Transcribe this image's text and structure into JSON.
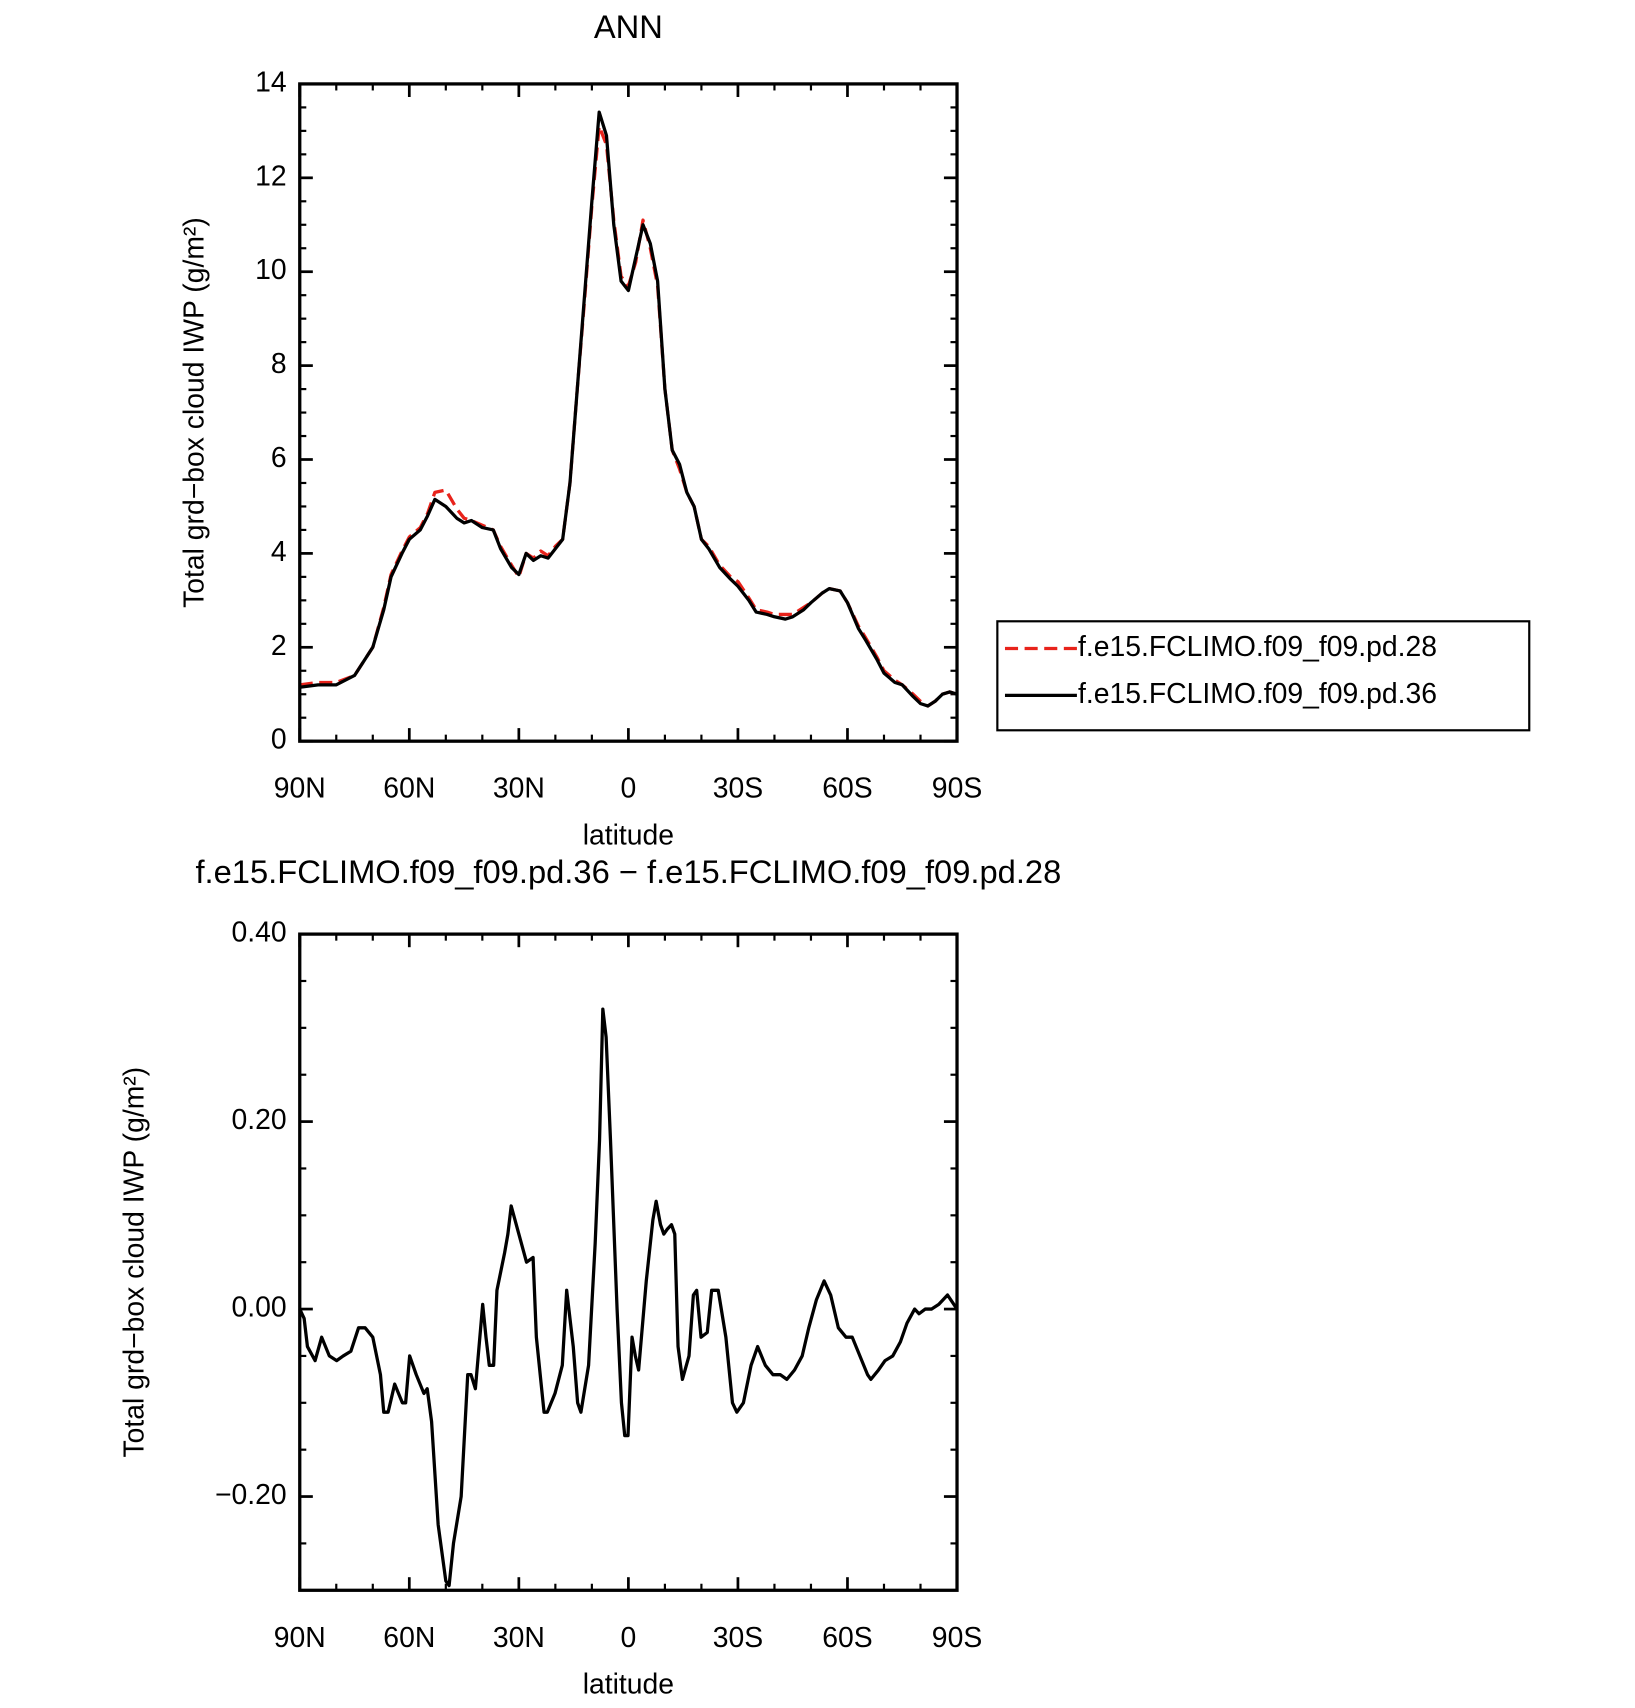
{
  "chart_data": [
    {
      "type": "line",
      "title": "ANN",
      "xlabel": "latitude",
      "ylabel": "Total grd−box cloud IWP (g/m²)",
      "x": [
        90,
        85,
        80,
        75,
        70,
        67,
        65,
        62,
        60,
        57,
        55,
        53,
        50,
        47,
        45,
        43,
        40,
        37,
        35,
        32,
        30,
        28,
        26,
        24,
        22,
        20,
        18,
        16,
        14,
        12,
        10,
        8,
        6,
        4,
        2,
        0,
        -2,
        -4,
        -6,
        -8,
        -10,
        -12,
        -14,
        -16,
        -18,
        -20,
        -22,
        -25,
        -28,
        -30,
        -33,
        -35,
        -38,
        -40,
        -43,
        -45,
        -48,
        -50,
        -53,
        -55,
        -58,
        -60,
        -63,
        -65,
        -68,
        -70,
        -73,
        -75,
        -78,
        -80,
        -82,
        -84,
        -86,
        -88,
        -90
      ],
      "series": [
        {
          "name": "f.e15.FCLIMO.f09_f09.pd.28",
          "color": "#e8231b",
          "linestyle": "dashed",
          "values": [
            1.2,
            1.25,
            1.25,
            1.4,
            2.0,
            2.85,
            3.55,
            4.05,
            4.35,
            4.55,
            4.85,
            5.3,
            5.35,
            4.95,
            4.75,
            4.7,
            4.6,
            4.5,
            4.15,
            3.75,
            3.5,
            4.0,
            3.9,
            4.05,
            3.95,
            4.15,
            4.3,
            5.5,
            7.5,
            9.4,
            11.4,
            13.1,
            12.7,
            11.1,
            9.9,
            9.7,
            10.2,
            11.1,
            10.5,
            9.7,
            7.5,
            6.2,
            5.8,
            5.3,
            5.0,
            4.3,
            4.15,
            3.75,
            3.5,
            3.4,
            3.05,
            2.8,
            2.75,
            2.7,
            2.7,
            2.7,
            2.85,
            2.95,
            3.15,
            3.25,
            3.2,
            2.95,
            2.45,
            2.2,
            1.8,
            1.5,
            1.3,
            1.2,
            1.0,
            0.85,
            0.75,
            0.85,
            1.0,
            1.05,
            1.0
          ]
        },
        {
          "name": "f.e15.FCLIMO.f09_f09.pd.36",
          "color": "#000000",
          "linestyle": "solid",
          "values": [
            1.15,
            1.2,
            1.2,
            1.4,
            2.0,
            2.8,
            3.5,
            4.0,
            4.3,
            4.5,
            4.8,
            5.15,
            5.0,
            4.75,
            4.65,
            4.7,
            4.55,
            4.5,
            4.1,
            3.7,
            3.55,
            4.0,
            3.85,
            3.95,
            3.9,
            4.1,
            4.3,
            5.5,
            7.5,
            9.5,
            11.5,
            13.4,
            12.9,
            11.0,
            9.8,
            9.6,
            10.3,
            11.0,
            10.6,
            9.8,
            7.5,
            6.2,
            5.9,
            5.3,
            5.0,
            4.3,
            4.1,
            3.7,
            3.45,
            3.3,
            3.0,
            2.75,
            2.7,
            2.65,
            2.6,
            2.65,
            2.8,
            2.95,
            3.15,
            3.25,
            3.2,
            2.95,
            2.4,
            2.15,
            1.75,
            1.45,
            1.25,
            1.2,
            0.95,
            0.8,
            0.75,
            0.85,
            1.0,
            1.05,
            1.0
          ]
        }
      ],
      "xlim": [
        90,
        -90
      ],
      "xticks": [
        {
          "value": 90,
          "label": "90N"
        },
        {
          "value": 60,
          "label": "60N"
        },
        {
          "value": 30,
          "label": "30N"
        },
        0,
        {
          "value": -30,
          "label": "30S"
        },
        {
          "value": -60,
          "label": "60S"
        },
        {
          "value": -90,
          "label": "90S"
        }
      ],
      "xminorticks": [
        80,
        70,
        50,
        40,
        20,
        10,
        -10,
        -20,
        -40,
        -50,
        -70,
        -80
      ],
      "ylim": [
        0,
        14
      ],
      "yticks": [
        0,
        2,
        4,
        6,
        8,
        10,
        12,
        14
      ],
      "yminorticks": [
        0.5,
        1,
        1.5,
        2.5,
        3,
        3.5,
        4.5,
        5,
        5.5,
        6.5,
        7,
        7.5,
        8.5,
        9,
        9.5,
        10.5,
        11,
        11.5,
        12.5,
        13,
        13.5
      ],
      "legend": "outside right"
    },
    {
      "type": "line",
      "title": "f.e15.FCLIMO.f09_f09.pd.36 − f.e15.FCLIMO.f09_f09.pd.28",
      "xlabel": "latitude",
      "ylabel": "Total grd−box cloud IWP (g/m²)",
      "x": [
        90,
        88.8,
        87.9,
        85.8,
        84,
        81.9,
        79.9,
        78.1,
        76,
        73.9,
        72.1,
        70,
        67.9,
        67,
        65.8,
        64,
        61.9,
        61,
        59.9,
        58.1,
        56,
        55.1,
        53.9,
        52.1,
        50,
        49.1,
        47.9,
        45.8,
        44,
        43.1,
        41.9,
        39.9,
        39,
        38.1,
        36.9,
        36,
        33.9,
        33,
        32.1,
        30,
        27.9,
        26.1,
        25.2,
        23.1,
        22.2,
        20.1,
        18.1,
        16.9,
        15.1,
        13.9,
        13,
        10.9,
        9.1,
        7.9,
        7,
        6.1,
        4.9,
        3.1,
        1.9,
        1,
        0.1,
        -1,
        -1.9,
        -2.8,
        -4.9,
        -6.7,
        -7.6,
        -8.8,
        -9.7,
        -10.6,
        -11.8,
        -12.7,
        -13.6,
        -14.8,
        -16.6,
        -17.8,
        -18.7,
        -19.9,
        -21.6,
        -22.8,
        -24.6,
        -26.7,
        -28.5,
        -29.7,
        -31.5,
        -33.6,
        -35.4,
        -37.5,
        -39.6,
        -41.6,
        -43.4,
        -45.5,
        -47.6,
        -49.4,
        -51.5,
        -53.6,
        -55.4,
        -57.5,
        -59.6,
        -61.3,
        -63.4,
        -65.5,
        -66.4,
        -68.5,
        -70.3,
        -72.4,
        -74.5,
        -76.3,
        -78.4,
        -79.6,
        -81.3,
        -83,
        -85,
        -87.4,
        -90
      ],
      "series": [
        {
          "color": "#000000",
          "linestyle": "solid",
          "values": [
            0,
            -0.01,
            -0.04,
            -0.055,
            -0.03,
            -0.05,
            -0.055,
            -0.05,
            -0.045,
            -0.02,
            -0.02,
            -0.03,
            -0.07,
            -0.11,
            -0.11,
            -0.08,
            -0.1,
            -0.1,
            -0.05,
            -0.07,
            -0.09,
            -0.085,
            -0.12,
            -0.23,
            -0.29,
            -0.295,
            -0.25,
            -0.2,
            -0.07,
            -0.07,
            -0.085,
            0.005,
            -0.03,
            -0.06,
            -0.06,
            0.02,
            0.06,
            0.08,
            0.11,
            0.08,
            0.05,
            0.055,
            -0.03,
            -0.11,
            -0.11,
            -0.09,
            -0.06,
            0.02,
            -0.04,
            -0.1,
            -0.11,
            -0.06,
            0.07,
            0.18,
            0.32,
            0.29,
            0.18,
            0.0,
            -0.1,
            -0.135,
            -0.135,
            -0.03,
            -0.05,
            -0.065,
            0.03,
            0.095,
            0.115,
            0.09,
            0.08,
            0.085,
            0.09,
            0.08,
            -0.04,
            -0.075,
            -0.05,
            0.015,
            0.02,
            -0.03,
            -0.025,
            0.02,
            0.02,
            -0.03,
            -0.1,
            -0.11,
            -0.1,
            -0.06,
            -0.04,
            -0.06,
            -0.07,
            -0.07,
            -0.075,
            -0.065,
            -0.05,
            -0.02,
            0.01,
            0.03,
            0.015,
            -0.02,
            -0.03,
            -0.03,
            -0.05,
            -0.07,
            -0.075,
            -0.065,
            -0.055,
            -0.05,
            -0.035,
            -0.015,
            0.0,
            -0.005,
            0.0,
            0.0,
            0.005,
            0.015,
            0.0
          ]
        }
      ],
      "xlim": [
        90,
        -90
      ],
      "xticks": [
        {
          "value": 90,
          "label": "90N"
        },
        {
          "value": 60,
          "label": "60N"
        },
        {
          "value": 30,
          "label": "30N"
        },
        0,
        {
          "value": -30,
          "label": "30S"
        },
        {
          "value": -60,
          "label": "60S"
        },
        {
          "value": -90,
          "label": "90S"
        }
      ],
      "xminorticks": [
        80,
        70,
        50,
        40,
        20,
        10,
        -10,
        -20,
        -40,
        -50,
        -70,
        -80
      ],
      "ylim": [
        -0.3,
        0.4
      ],
      "yticks": [
        {
          "value": -0.2,
          "label": "−0.20"
        },
        {
          "value": 0,
          "label": "0.00"
        },
        {
          "value": 0.2,
          "label": "0.20"
        },
        {
          "value": 0.4,
          "label": "0.40"
        }
      ],
      "yminorticks": [
        -0.25,
        -0.15,
        -0.1,
        -0.05,
        0.05,
        0.1,
        0.15,
        0.25,
        0.3,
        0.35
      ]
    }
  ]
}
